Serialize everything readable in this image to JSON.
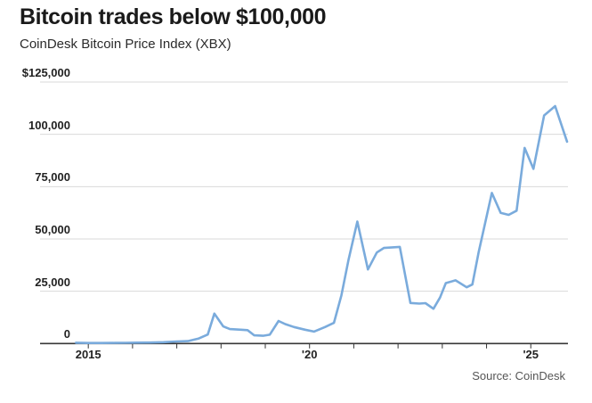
{
  "chart_data": {
    "type": "line",
    "title": "Bitcoin trades below $100,000",
    "subtitle": "CoinDesk Bitcoin Price Index (XBX)",
    "source": "Source: CoinDesk",
    "xlabel": "",
    "ylabel": "",
    "x_unit": "year (decimal)",
    "y_unit": "USD",
    "xlim": [
      2013.91,
      2025.84
    ],
    "ylim": [
      0,
      125000
    ],
    "grid": "horizontal",
    "legend": "none",
    "y_ticks": [
      {
        "value": 0,
        "label": "0"
      },
      {
        "value": 25000,
        "label": "25,000"
      },
      {
        "value": 50000,
        "label": "50,000"
      },
      {
        "value": 75000,
        "label": "75,000"
      },
      {
        "value": 100000,
        "label": "100,000"
      },
      {
        "value": 125000,
        "label": "$125,000"
      }
    ],
    "x_ticks": [
      {
        "value": 2015,
        "label": "2015"
      },
      {
        "value": 2016,
        "label": ""
      },
      {
        "value": 2017,
        "label": ""
      },
      {
        "value": 2018,
        "label": ""
      },
      {
        "value": 2019,
        "label": ""
      },
      {
        "value": 2020,
        "label": "'20"
      },
      {
        "value": 2021,
        "label": ""
      },
      {
        "value": 2022,
        "label": ""
      },
      {
        "value": 2023,
        "label": ""
      },
      {
        "value": 2024,
        "label": ""
      },
      {
        "value": 2025,
        "label": "'25"
      }
    ],
    "series": [
      {
        "name": "CoinDesk Bitcoin Price Index (XBX)",
        "color": "#7aabdc",
        "points": [
          [
            2014.72,
            370
          ],
          [
            2015.0,
            260
          ],
          [
            2015.3,
            250
          ],
          [
            2015.6,
            280
          ],
          [
            2015.85,
            330
          ],
          [
            2016.1,
            420
          ],
          [
            2016.4,
            450
          ],
          [
            2016.7,
            640
          ],
          [
            2017.0,
            970
          ],
          [
            2017.25,
            1150
          ],
          [
            2017.5,
            2450
          ],
          [
            2017.7,
            4300
          ],
          [
            2017.85,
            14300
          ],
          [
            2018.05,
            8200
          ],
          [
            2018.2,
            6900
          ],
          [
            2018.45,
            6600
          ],
          [
            2018.6,
            6400
          ],
          [
            2018.75,
            3900
          ],
          [
            2018.95,
            3700
          ],
          [
            2019.1,
            4200
          ],
          [
            2019.3,
            10800
          ],
          [
            2019.45,
            9300
          ],
          [
            2019.65,
            7900
          ],
          [
            2019.9,
            6600
          ],
          [
            2020.1,
            5700
          ],
          [
            2020.35,
            7900
          ],
          [
            2020.55,
            9900
          ],
          [
            2020.72,
            23000
          ],
          [
            2020.88,
            40000
          ],
          [
            2021.08,
            58300
          ],
          [
            2021.32,
            35400
          ],
          [
            2021.52,
            43500
          ],
          [
            2021.68,
            45700
          ],
          [
            2021.88,
            46000
          ],
          [
            2022.04,
            46200
          ],
          [
            2022.28,
            19400
          ],
          [
            2022.48,
            19100
          ],
          [
            2022.62,
            19300
          ],
          [
            2022.8,
            16600
          ],
          [
            2022.95,
            22000
          ],
          [
            2023.08,
            28900
          ],
          [
            2023.3,
            30200
          ],
          [
            2023.55,
            26900
          ],
          [
            2023.68,
            28200
          ],
          [
            2023.82,
            43500
          ],
          [
            2024.12,
            72000
          ],
          [
            2024.32,
            62500
          ],
          [
            2024.5,
            61500
          ],
          [
            2024.68,
            63500
          ],
          [
            2024.86,
            93500
          ],
          [
            2025.06,
            83500
          ],
          [
            2025.3,
            109000
          ],
          [
            2025.55,
            113500
          ],
          [
            2025.82,
            96500
          ]
        ]
      }
    ],
    "colors": {
      "line": "#7aabdc",
      "gridline": "#d9d9d9",
      "axis": "#383838",
      "tick": "#333333",
      "title_text": "#1a1a1a",
      "label_text": "#222222",
      "source_text": "#555555",
      "background": "#ffffff"
    }
  }
}
